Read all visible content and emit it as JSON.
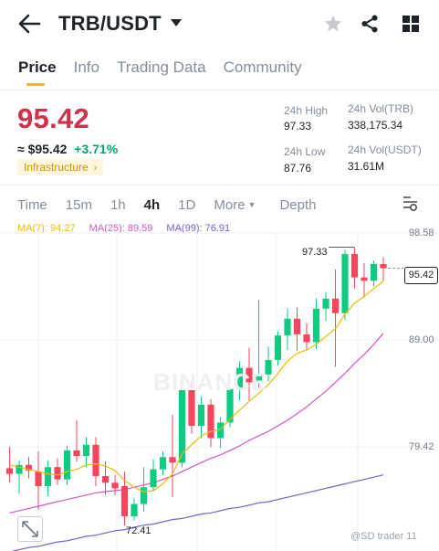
{
  "header": {
    "pair": "TRB/USDT",
    "icons": [
      "back-arrow-icon",
      "caret-down-icon",
      "star-icon",
      "share-icon",
      "grid-icon"
    ]
  },
  "tabs": [
    {
      "label": "Price",
      "active": true
    },
    {
      "label": "Info",
      "active": false
    },
    {
      "label": "Trading Data",
      "active": false
    },
    {
      "label": "Community",
      "active": false
    }
  ],
  "price": {
    "last": "95.42",
    "fiat": "≈ $95.42",
    "change": "+3.71%",
    "sector": "Infrastructure",
    "sector_arrow": "›"
  },
  "stats": {
    "high_label": "24h High",
    "high": "97.33",
    "low_label": "24h Low",
    "low": "87.76",
    "vol_base_label": "24h Vol(TRB)",
    "vol_base": "338,175.34",
    "vol_quote_label": "24h Vol(USDT)",
    "vol_quote": "31.61M"
  },
  "intervals": {
    "items": [
      "Time",
      "15m",
      "1h",
      "4h",
      "1D"
    ],
    "active": "4h",
    "more": "More",
    "depth": "Depth"
  },
  "ma": {
    "ma7": "MA(7): 94.27",
    "ma25": "MA(25): 89.59",
    "ma99": "MA(99): 76.91"
  },
  "colors": {
    "up": "#0ecb81",
    "down": "#f6465d",
    "ma7": "#f0b90b",
    "ma25": "#d456c5",
    "ma99": "#7b5cd6",
    "accent": "#f0b90b"
  },
  "chart": {
    "watermark": "BINANCE",
    "axis": [
      "98.58",
      "89.00",
      "79.42"
    ],
    "current_tag": "95.42",
    "high_annotation": "97.33",
    "low_annotation": "72.41",
    "credit": "@SD trader 11"
  },
  "chart_data": {
    "type": "candlestick",
    "y_ticks": [
      98.58,
      89.0,
      79.42
    ],
    "ylim": [
      70.0,
      100.5
    ],
    "candles": [
      {
        "o": 77.5,
        "h": 79.4,
        "l": 76.2,
        "c": 77.0
      },
      {
        "o": 77.0,
        "h": 78.2,
        "l": 75.2,
        "c": 77.8
      },
      {
        "o": 77.8,
        "h": 78.5,
        "l": 76.6,
        "c": 77.3
      },
      {
        "o": 77.2,
        "h": 79.0,
        "l": 73.8,
        "c": 75.9
      },
      {
        "o": 75.9,
        "h": 78.2,
        "l": 75.0,
        "c": 77.6
      },
      {
        "o": 77.6,
        "h": 78.4,
        "l": 76.0,
        "c": 76.5
      },
      {
        "o": 76.5,
        "h": 79.5,
        "l": 76.0,
        "c": 79.1
      },
      {
        "o": 79.1,
        "h": 81.8,
        "l": 78.1,
        "c": 78.6
      },
      {
        "o": 78.6,
        "h": 80.3,
        "l": 77.6,
        "c": 79.6
      },
      {
        "o": 79.6,
        "h": 80.3,
        "l": 75.9,
        "c": 76.8
      },
      {
        "o": 76.8,
        "h": 78.1,
        "l": 75.1,
        "c": 76.2
      },
      {
        "o": 76.2,
        "h": 76.9,
        "l": 75.1,
        "c": 75.7
      },
      {
        "o": 75.9,
        "h": 77.2,
        "l": 72.4,
        "c": 73.2
      },
      {
        "o": 73.2,
        "h": 74.8,
        "l": 72.8,
        "c": 74.3
      },
      {
        "o": 74.3,
        "h": 77.6,
        "l": 73.6,
        "c": 75.8
      },
      {
        "o": 75.8,
        "h": 78.3,
        "l": 75.4,
        "c": 77.4
      },
      {
        "o": 77.4,
        "h": 79.0,
        "l": 76.9,
        "c": 78.5
      },
      {
        "o": 78.5,
        "h": 82.3,
        "l": 74.9,
        "c": 78.0
      },
      {
        "o": 78.0,
        "h": 85.3,
        "l": 77.6,
        "c": 84.5
      },
      {
        "o": 84.5,
        "h": 85.4,
        "l": 80.6,
        "c": 81.3
      },
      {
        "o": 81.3,
        "h": 83.9,
        "l": 80.2,
        "c": 83.2
      },
      {
        "o": 83.2,
        "h": 83.7,
        "l": 79.4,
        "c": 80.2
      },
      {
        "o": 80.2,
        "h": 82.1,
        "l": 79.3,
        "c": 81.6
      },
      {
        "o": 81.6,
        "h": 85.3,
        "l": 81.2,
        "c": 84.6
      },
      {
        "o": 84.6,
        "h": 87.1,
        "l": 83.6,
        "c": 86.5
      },
      {
        "o": 86.5,
        "h": 88.3,
        "l": 83.6,
        "c": 85.2
      },
      {
        "o": 85.2,
        "h": 92.6,
        "l": 84.5,
        "c": 85.9
      },
      {
        "o": 85.9,
        "h": 88.4,
        "l": 85.3,
        "c": 87.2
      },
      {
        "o": 87.2,
        "h": 89.8,
        "l": 86.7,
        "c": 89.4
      },
      {
        "o": 89.4,
        "h": 91.8,
        "l": 88.1,
        "c": 90.9
      },
      {
        "o": 90.9,
        "h": 91.9,
        "l": 88.0,
        "c": 89.5
      },
      {
        "o": 89.5,
        "h": 90.5,
        "l": 88.1,
        "c": 88.8
      },
      {
        "o": 88.8,
        "h": 92.7,
        "l": 88.2,
        "c": 91.8
      },
      {
        "o": 91.8,
        "h": 93.3,
        "l": 90.7,
        "c": 92.7
      },
      {
        "o": 92.7,
        "h": 95.3,
        "l": 86.6,
        "c": 91.4
      },
      {
        "o": 91.4,
        "h": 97.1,
        "l": 90.8,
        "c": 96.7
      },
      {
        "o": 96.7,
        "h": 97.3,
        "l": 93.6,
        "c": 94.6
      },
      {
        "o": 94.6,
        "h": 95.9,
        "l": 92.8,
        "c": 94.3
      },
      {
        "o": 94.3,
        "h": 96.1,
        "l": 93.8,
        "c": 95.8
      },
      {
        "o": 95.8,
        "h": 96.4,
        "l": 94.3,
        "c": 95.42
      }
    ],
    "ma7": [
      77.8,
      77.6,
      77.4,
      77.2,
      77.0,
      76.9,
      77.2,
      77.4,
      77.8,
      77.9,
      77.7,
      77.3,
      76.4,
      75.8,
      75.4,
      75.5,
      76.1,
      77.0,
      78.8,
      79.6,
      80.4,
      80.8,
      81.0,
      81.9,
      82.7,
      83.5,
      84.2,
      85.0,
      86.0,
      87.1,
      87.8,
      88.1,
      88.6,
      89.3,
      90.0,
      91.3,
      92.3,
      92.9,
      93.6,
      94.27
    ],
    "ma25": [
      73.5,
      73.7,
      73.9,
      74.1,
      74.3,
      74.5,
      74.7,
      74.9,
      75.1,
      75.3,
      75.4,
      75.5,
      75.6,
      75.8,
      76.0,
      76.2,
      76.5,
      76.8,
      77.2,
      77.6,
      78.0,
      78.4,
      78.7,
      79.1,
      79.5,
      80.0,
      80.4,
      80.8,
      81.3,
      81.8,
      82.4,
      83.0,
      83.7,
      84.4,
      85.2,
      86.0,
      86.9,
      87.7,
      88.6,
      89.59
    ],
    "ma99": [
      70.0,
      70.2,
      70.4,
      70.5,
      70.7,
      70.9,
      71.0,
      71.2,
      71.4,
      71.5,
      71.7,
      71.9,
      72.0,
      72.2,
      72.4,
      72.5,
      72.7,
      72.9,
      73.0,
      73.2,
      73.4,
      73.5,
      73.7,
      73.9,
      74.0,
      74.2,
      74.4,
      74.5,
      74.7,
      74.9,
      75.1,
      75.3,
      75.5,
      75.7,
      75.9,
      76.1,
      76.3,
      76.5,
      76.7,
      76.91
    ]
  }
}
